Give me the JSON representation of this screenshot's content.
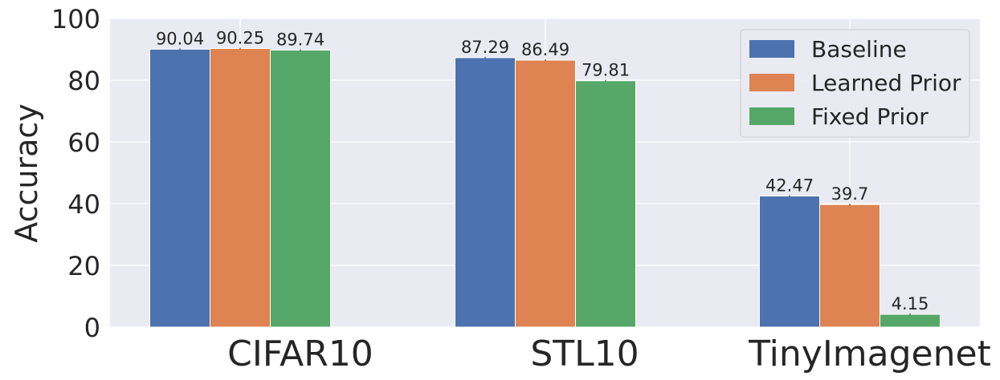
{
  "chart_data": {
    "type": "bar",
    "title": "",
    "xlabel": "",
    "ylabel": "Accuracy",
    "ylim": [
      0,
      100
    ],
    "yticks": [
      0,
      20,
      40,
      60,
      80,
      100
    ],
    "categories": [
      "CIFAR10",
      "STL10",
      "TinyImagenet"
    ],
    "series": [
      {
        "name": "Baseline",
        "color": "#4c72b0",
        "values": [
          90.04,
          87.29,
          42.47
        ],
        "labels": [
          "90.04",
          "87.29",
          "42.47"
        ]
      },
      {
        "name": "Learned Prior",
        "color": "#dd8452",
        "values": [
          90.25,
          86.49,
          39.7
        ],
        "labels": [
          "90.25",
          "86.49",
          "39.7"
        ]
      },
      {
        "name": "Fixed Prior",
        "color": "#55a868",
        "values": [
          89.74,
          79.81,
          4.15
        ],
        "labels": [
          "89.74",
          "79.81",
          "4.15"
        ]
      }
    ],
    "grid": true,
    "legend_position": "top-right",
    "background": "#eaeaf2"
  }
}
